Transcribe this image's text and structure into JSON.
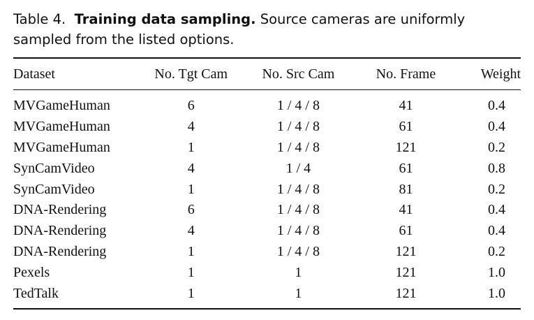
{
  "caption": {
    "label": "Table 4.",
    "title": "Training data sampling.",
    "text": "Source cameras are uniformly sampled from the listed options."
  },
  "table": {
    "headers": [
      "Dataset",
      "No. Tgt Cam",
      "No. Src Cam",
      "No. Frame",
      "Weight"
    ],
    "rows": [
      [
        "MVGameHuman",
        "6",
        "1 / 4 / 8",
        "41",
        "0.4"
      ],
      [
        "MVGameHuman",
        "4",
        "1 / 4 / 8",
        "61",
        "0.4"
      ],
      [
        "MVGameHuman",
        "1",
        "1 / 4 / 8",
        "121",
        "0.2"
      ],
      [
        "SynCamVideo",
        "4",
        "1 / 4",
        "61",
        "0.8"
      ],
      [
        "SynCamVideo",
        "1",
        "1 / 4 / 8",
        "81",
        "0.2"
      ],
      [
        "DNA-Rendering",
        "6",
        "1 / 4 / 8",
        "41",
        "0.4"
      ],
      [
        "DNA-Rendering",
        "4",
        "1 / 4 / 8",
        "61",
        "0.4"
      ],
      [
        "DNA-Rendering",
        "1",
        "1 / 4 / 8",
        "121",
        "0.2"
      ],
      [
        "Pexels",
        "1",
        "1",
        "121",
        "1.0"
      ],
      [
        "TedTalk",
        "1",
        "1",
        "121",
        "1.0"
      ]
    ]
  }
}
